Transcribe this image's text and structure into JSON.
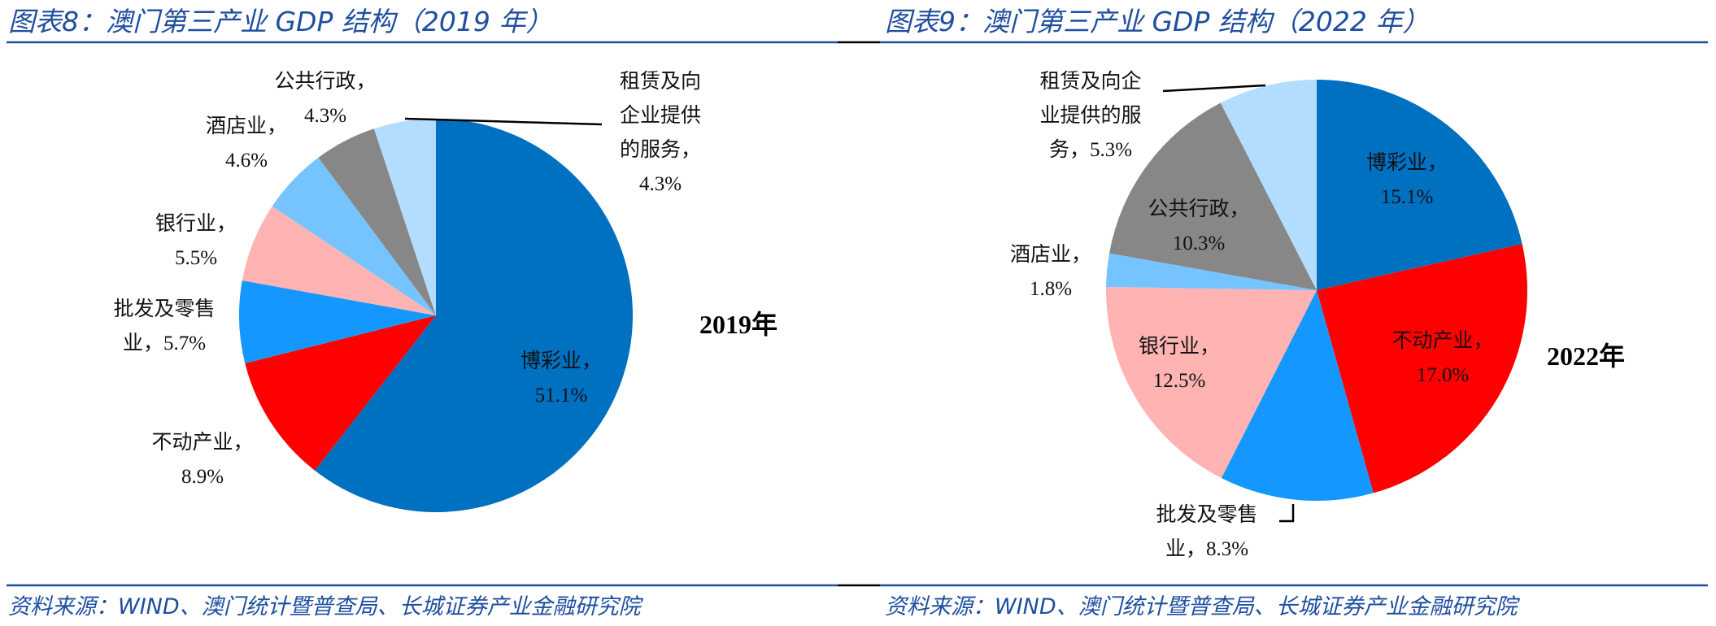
{
  "chart_data": [
    {
      "type": "pie",
      "title": "图表8：澳门第三产业 GDP 结构（2019 年）",
      "year_label": "2019年",
      "source": "资料来源：WIND、澳门统计暨普查局、长城证券产业金融研究院",
      "slices": [
        {
          "name": "博彩业",
          "value": 51.1,
          "label_lines": [
            "博彩业，",
            "51.1%"
          ],
          "color": "#0070C0"
        },
        {
          "name": "不动产业",
          "value": 8.9,
          "label_lines": [
            "不动产业，",
            "8.9%"
          ],
          "color": "#FF0000"
        },
        {
          "name": "批发及零售业",
          "value": 5.7,
          "label_lines": [
            "批发及零售",
            "业，5.7%"
          ],
          "color": "#1497FF"
        },
        {
          "name": "银行业",
          "value": 5.5,
          "label_lines": [
            "银行业，",
            "5.5%"
          ],
          "color": "#FFB3B3"
        },
        {
          "name": "酒店业",
          "value": 4.6,
          "label_lines": [
            "酒店业，",
            "4.6%"
          ],
          "color": "#75C4FF"
        },
        {
          "name": "公共行政",
          "value": 4.3,
          "label_lines": [
            "公共行政，",
            "4.3%"
          ],
          "color": "#878787"
        },
        {
          "name": "租赁及向企业提供的服务",
          "value": 4.3,
          "label_lines": [
            "租赁及向",
            "企业提供",
            "的服务，",
            "4.3%"
          ],
          "color": "#B3DDFF"
        }
      ]
    },
    {
      "type": "pie",
      "title": "图表9：澳门第三产业 GDP 结构（2022 年）",
      "year_label": "2022年",
      "source": "资料来源：WIND、澳门统计暨普查局、长城证券产业金融研究院",
      "slices": [
        {
          "name": "博彩业",
          "value": 15.1,
          "label_lines": [
            "博彩业，",
            "15.1%"
          ],
          "color": "#0070C0"
        },
        {
          "name": "不动产业",
          "value": 17.0,
          "label_lines": [
            "不动产业，",
            "17.0%"
          ],
          "color": "#FF0000"
        },
        {
          "name": "批发及零售业",
          "value": 8.3,
          "label_lines": [
            "批发及零售",
            "业，8.3%"
          ],
          "color": "#1497FF"
        },
        {
          "name": "银行业",
          "value": 12.5,
          "label_lines": [
            "银行业，",
            "12.5%"
          ],
          "color": "#FFB3B3"
        },
        {
          "name": "酒店业",
          "value": 1.8,
          "label_lines": [
            "酒店业，",
            "1.8%"
          ],
          "color": "#75C4FF"
        },
        {
          "name": "公共行政",
          "value": 10.3,
          "label_lines": [
            "公共行政，",
            "10.3%"
          ],
          "color": "#878787"
        },
        {
          "name": "租赁及向企业提供的服务",
          "value": 5.3,
          "label_lines": [
            "租赁及向企",
            "业提供的服",
            "务，5.3%"
          ],
          "color": "#B3DDFF"
        }
      ]
    }
  ]
}
